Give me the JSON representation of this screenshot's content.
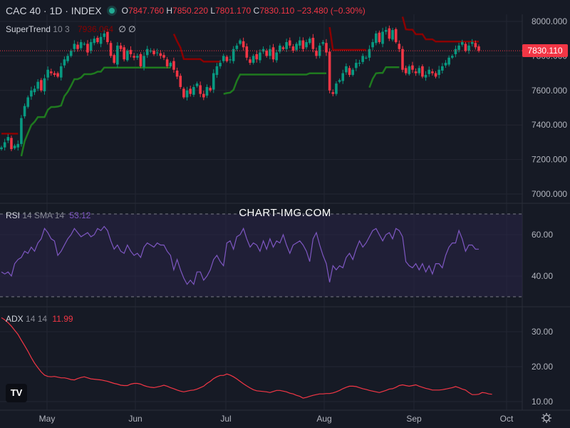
{
  "header": {
    "symbol": "CAC 40 · 1D · INDEX",
    "open_label": "O",
    "open": "7847.760",
    "high_label": "H",
    "high": "7850.220",
    "low_label": "L",
    "low": "7801.170",
    "close_label": "C",
    "close": "7830.110",
    "change": "−23.480 (−0.30%)"
  },
  "watermark": "CHART-IMG.COM",
  "price_tag": "7830.110",
  "logo_text": "TV",
  "colors": {
    "up": "#089981",
    "down": "#f23645",
    "st_up": "#1f7a1f",
    "st_down": "#8b0000",
    "rsi": "#7e57c2",
    "adx": "#f23645",
    "bg": "#161a25"
  },
  "chart_data": [
    {
      "type": "candlestick",
      "title": "CAC 40 · 1D · INDEX",
      "indicator": {
        "name": "SuperTrend",
        "params": "10 3",
        "value": "7936.064",
        "extra": "∅ ∅"
      },
      "ylim": [
        6950,
        8050
      ],
      "y_ticks": [
        7000,
        7200,
        7400,
        7600,
        7800,
        8000
      ],
      "y_tick_labels": [
        "7000.000",
        "7200.000",
        "7400.000",
        "7600.000",
        "7800.000",
        "8000.000"
      ],
      "x_ticks": [
        "May",
        "Jun",
        "Jul",
        "Aug",
        "Sep",
        "Oct"
      ],
      "last_close": 7830.11,
      "closes": [
        7270,
        7300,
        7330,
        7260,
        7280,
        7290,
        7440,
        7510,
        7560,
        7600,
        7610,
        7650,
        7600,
        7670,
        7720,
        7700,
        7690,
        7680,
        7740,
        7780,
        7800,
        7830,
        7870,
        7840,
        7880,
        7870,
        7820,
        7880,
        7900,
        7880,
        7910,
        7930,
        7880,
        7800,
        7760,
        7860,
        7840,
        7780,
        7830,
        7810,
        7790,
        7800,
        7740,
        7800,
        7840,
        7830,
        7810,
        7820,
        7800,
        7790,
        7740,
        7760,
        7720,
        7680,
        7620,
        7560,
        7600,
        7580,
        7620,
        7640,
        7580,
        7560,
        7620,
        7600,
        7700,
        7740,
        7760,
        7800,
        7770,
        7780,
        7840,
        7860,
        7890,
        7850,
        7790,
        7760,
        7800,
        7780,
        7820,
        7840,
        7800,
        7840,
        7780,
        7820,
        7860,
        7840,
        7880,
        7860,
        7830,
        7870,
        7890,
        7840,
        7880,
        7900,
        7840,
        7800,
        7860,
        7880,
        7820,
        7600,
        7580,
        7640,
        7660,
        7700,
        7740,
        7690,
        7720,
        7760,
        7760,
        7800,
        7790,
        7840,
        7880,
        7930,
        7880,
        7940,
        7950,
        7900,
        7950,
        7880,
        7840,
        7720,
        7700,
        7740,
        7720,
        7700,
        7730,
        7680,
        7690,
        7720,
        7700,
        7680,
        7720,
        7740,
        7760,
        7790,
        7800,
        7840,
        7860,
        7880,
        7830,
        7860,
        7880,
        7850,
        7830
      ]
    },
    {
      "type": "line",
      "title": "RSI",
      "params": "14 SMA 14",
      "last_value": "53.12",
      "ylim": [
        26,
        72
      ],
      "y_ticks": [
        40,
        60
      ],
      "y_tick_labels": [
        "40.00",
        "60.00"
      ],
      "bands": [
        30,
        70
      ],
      "values": [
        42,
        41,
        42,
        40,
        46,
        48,
        49,
        52,
        51,
        54,
        52,
        56,
        58,
        63,
        61,
        58,
        57,
        50,
        52,
        55,
        58,
        60,
        63,
        61,
        59,
        60,
        61,
        59,
        60,
        63,
        62,
        64,
        62,
        57,
        53,
        55,
        52,
        51,
        55,
        52,
        50,
        51,
        49,
        54,
        56,
        55,
        54,
        56,
        55,
        55,
        52,
        50,
        43,
        48,
        43,
        39,
        36,
        38,
        36,
        42,
        42,
        38,
        40,
        43,
        48,
        50,
        47,
        45,
        56,
        57,
        53,
        59,
        60,
        63,
        58,
        54,
        56,
        55,
        52,
        57,
        53,
        58,
        54,
        57,
        56,
        60,
        55,
        51,
        55,
        56,
        57,
        55,
        52,
        47,
        58,
        61,
        55,
        50,
        46,
        37,
        45,
        43,
        45,
        44,
        49,
        51,
        48,
        53,
        57,
        54,
        56,
        59,
        62,
        63,
        60,
        57,
        60,
        61,
        58,
        63,
        62,
        59,
        47,
        45,
        44,
        46,
        43,
        46,
        42,
        45,
        41,
        46,
        46,
        44,
        50,
        54,
        56,
        56,
        62,
        58,
        52,
        55,
        55,
        53,
        53
      ]
    },
    {
      "type": "line",
      "title": "ADX",
      "params": "14 14",
      "last_value": "11.99",
      "ylim": [
        8,
        35
      ],
      "y_ticks": [
        10,
        20,
        30
      ],
      "y_tick_labels": [
        "10.00",
        "20.00",
        "30.00"
      ],
      "values": [
        34,
        33.4,
        32.6,
        31.6,
        30.4,
        29.2,
        27.6,
        26,
        24.4,
        22.6,
        21,
        19.7,
        18.5,
        17.6,
        17.2,
        17.1,
        17.2,
        17,
        16.8,
        16.8,
        16.6,
        16.3,
        16.2,
        16.6,
        16.9,
        17.1,
        16.8,
        16.5,
        16.4,
        16.3,
        16.2,
        16,
        15.8,
        15.5,
        15.2,
        15,
        14.7,
        14.6,
        14.6,
        15,
        15.2,
        15.2,
        15,
        14.6,
        14.3,
        14.1,
        14,
        14.2,
        14.4,
        14.7,
        14.4,
        14,
        13.7,
        13.3,
        13,
        12.8,
        13,
        13.2,
        13.3,
        13.6,
        14,
        14.4,
        15.2,
        15.8,
        16.6,
        17.1,
        17.5,
        17.5,
        17.9,
        17.6,
        17.1,
        16.5,
        15.8,
        15.1,
        14.5,
        13.9,
        13.4,
        13.1,
        13,
        12.9,
        12.8,
        12.6,
        12.9,
        13.2,
        13.2,
        13,
        12.8,
        12.4,
        12.2,
        11.8,
        11.5,
        11,
        11.2,
        11.5,
        11.8,
        12,
        12.2,
        12.2,
        12.3,
        12.3,
        12.5,
        12.8,
        13.2,
        13.7,
        14.1,
        14.4,
        14.4,
        14.3,
        14,
        13.7,
        13.5,
        13.2,
        13,
        12.8,
        12.6,
        12.9,
        13.2,
        13.6,
        13.7,
        14.1,
        14.6,
        14.8,
        14.6,
        14.4,
        14.6,
        14.8,
        14.4,
        14.1,
        13.8,
        13.6,
        13.3,
        13.3,
        13.3,
        13.4,
        13.6,
        13.8,
        14,
        14.3,
        14,
        13.6,
        13.3,
        12.6,
        12,
        12,
        12.1,
        12.6,
        12.5,
        12.2,
        12.1
      ]
    }
  ]
}
